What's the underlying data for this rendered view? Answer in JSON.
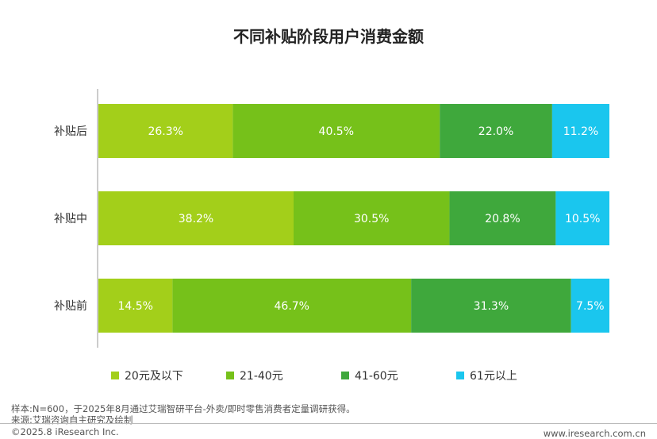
{
  "title": "不同补贴阶段用户消费金额",
  "chart_data": {
    "type": "bar",
    "orientation": "horizontal",
    "stacked": true,
    "categories": [
      "补贴后",
      "补贴中",
      "补贴前"
    ],
    "series": [
      {
        "name": "20元及以下",
        "color": "#a3cf1a",
        "values": [
          26.3,
          38.2,
          14.5
        ],
        "labels": [
          "26.3%",
          "38.2%",
          "14.5%"
        ]
      },
      {
        "name": "21-40元",
        "color": "#76c11a",
        "values": [
          40.5,
          30.5,
          46.7
        ],
        "labels": [
          "40.5%",
          "30.5%",
          "46.7%"
        ]
      },
      {
        "name": "41-60元",
        "color": "#3fa83c",
        "values": [
          22.0,
          20.8,
          31.3
        ],
        "labels": [
          "22.0%",
          "20.8%",
          "31.3%"
        ]
      },
      {
        "name": "61元以上",
        "color": "#1ac6ee",
        "values": [
          11.2,
          10.5,
          7.5
        ],
        "labels": [
          "11.2%",
          "10.5%",
          "7.5%"
        ]
      }
    ],
    "xlim": [
      0,
      100
    ],
    "grid": false,
    "legend_position": "bottom"
  },
  "footer": {
    "note": "样本:N=600，于2025年8月通过艾瑞智研平台-外卖/即时零售消费者定量调研获得。",
    "source": "来源:艾瑞咨询自主研究及绘制",
    "copyright": "©2025.8 iResearch Inc.",
    "url": "www.iresearch.com.cn"
  }
}
